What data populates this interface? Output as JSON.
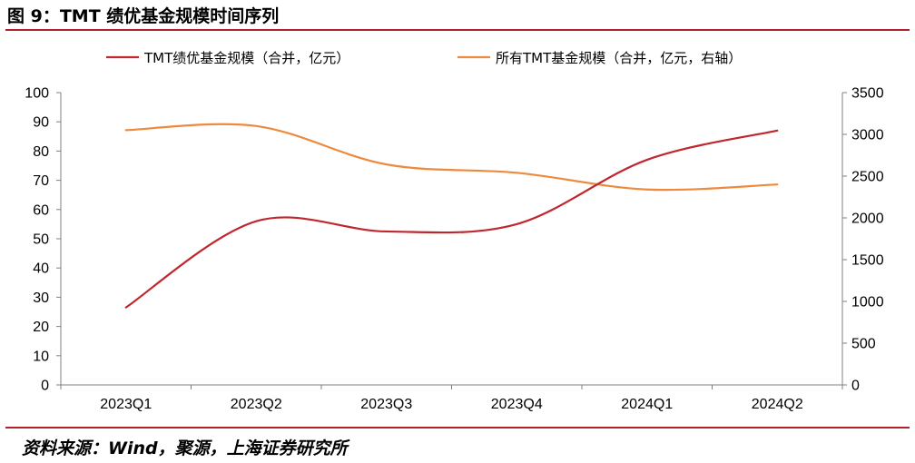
{
  "figure": {
    "title": "图 9：TMT 绩优基金规模时间序列",
    "source": "资料来源：Wind，聚源，上海证券研究所"
  },
  "colors": {
    "rule": "#b0232a",
    "series_left": "#c0272d",
    "series_right": "#ed8a3e",
    "axis": "#808080"
  },
  "chart_data": {
    "type": "line",
    "categories": [
      "2023Q1",
      "2023Q2",
      "2023Q3",
      "2023Q4",
      "2024Q1",
      "2024Q2"
    ],
    "series": [
      {
        "name": "TMT绩优基金规模（合并，亿元）",
        "axis": "left",
        "color": "#c0272d",
        "values": [
          26.5,
          56,
          52.5,
          55,
          77,
          87
        ]
      },
      {
        "name": "所有TMT基金规模（合并，亿元，右轴）",
        "axis": "right",
        "color": "#ed8a3e",
        "values": [
          3050,
          3100,
          2640,
          2540,
          2340,
          2400
        ]
      }
    ],
    "y_left": {
      "min": 0,
      "max": 100,
      "step": 10,
      "ticks": [
        "0",
        "10",
        "20",
        "30",
        "40",
        "50",
        "60",
        "70",
        "80",
        "90",
        "100"
      ]
    },
    "y_right": {
      "min": 0,
      "max": 3500,
      "step": 500,
      "ticks": [
        "0",
        "500",
        "1000",
        "1500",
        "2000",
        "2500",
        "3000",
        "3500"
      ]
    },
    "grid": false,
    "legend_position": "top"
  }
}
